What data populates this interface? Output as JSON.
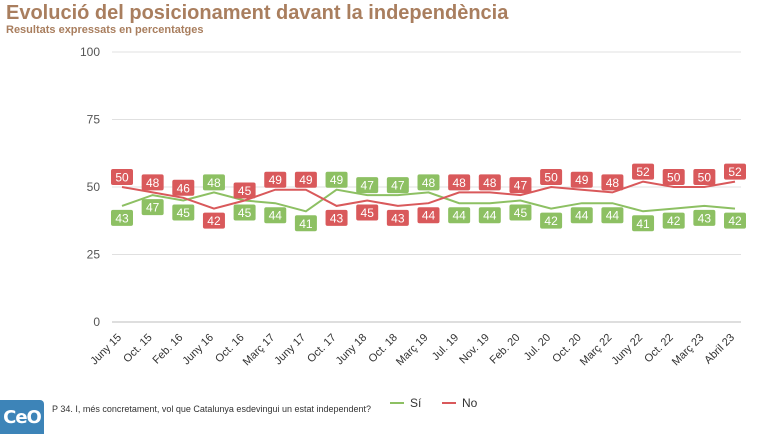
{
  "title": "Evolució del posicionament davant la independència",
  "subtitle": "Resultats expressats en percentatges",
  "footnote": "P 34. I, més concretament, vol que Catalunya esdevingui un estat independent?",
  "logo_text": "CeO",
  "colors": {
    "si": "#8dc063",
    "no": "#d9595b",
    "title": "#a97e5e",
    "grid": "#e0e0e0",
    "logo": "#3d84b8"
  },
  "chart_data": {
    "type": "line",
    "title": "Evolució del posicionament davant la independència",
    "subtitle": "Resultats expressats en percentatges",
    "categories": [
      "Juny 15",
      "Oct. 15",
      "Feb. 16",
      "Juny 16",
      "Oct. 16",
      "Març 17",
      "Juny 17",
      "Oct. 17",
      "Juny 18",
      "Oct. 18",
      "Març 19",
      "Jul. 19",
      "Nov. 19",
      "Feb. 20",
      "Jul. 20",
      "Oct. 20",
      "Març 22",
      "Juny 22",
      "Oct. 22",
      "Març 23",
      "Abril 23"
    ],
    "series": [
      {
        "name": "Sí",
        "color": "#8dc063",
        "values": [
          43,
          47,
          45,
          48,
          45,
          44,
          41,
          49,
          47,
          47,
          48,
          44,
          44,
          45,
          42,
          44,
          44,
          41,
          42,
          43,
          42
        ]
      },
      {
        "name": "No",
        "color": "#d9595b",
        "values": [
          50,
          48,
          46,
          42,
          45,
          49,
          49,
          43,
          45,
          43,
          44,
          48,
          48,
          47,
          50,
          49,
          48,
          52,
          50,
          50,
          52
        ]
      }
    ],
    "ylim": [
      0,
      100
    ],
    "yticks": [
      0,
      25,
      50,
      75,
      100
    ],
    "grid": true,
    "legend": "bottom"
  }
}
